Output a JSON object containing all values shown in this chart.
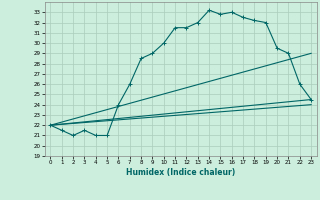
{
  "xlabel": "Humidex (Indice chaleur)",
  "background_color": "#cceedd",
  "grid_color": "#aaccbb",
  "line_color": "#006666",
  "xlim": [
    -0.5,
    23.5
  ],
  "ylim": [
    19,
    34
  ],
  "yticks": [
    19,
    20,
    21,
    22,
    23,
    24,
    25,
    26,
    27,
    28,
    29,
    30,
    31,
    32,
    33
  ],
  "xticks": [
    0,
    1,
    2,
    3,
    4,
    5,
    6,
    7,
    8,
    9,
    10,
    11,
    12,
    13,
    14,
    15,
    16,
    17,
    18,
    19,
    20,
    21,
    22,
    23
  ],
  "series": [
    {
      "x": [
        0,
        1,
        2,
        3,
        4,
        5,
        6,
        7,
        8,
        9,
        10,
        11,
        12,
        13,
        14,
        15,
        16,
        17,
        18,
        19,
        20,
        21,
        22,
        23
      ],
      "y": [
        22,
        21.5,
        21,
        21.5,
        21,
        21,
        24,
        26,
        28.5,
        29,
        30,
        31.5,
        31.5,
        32,
        33.2,
        32.8,
        33,
        32.5,
        32.2,
        32,
        29.5,
        29,
        26,
        24.5
      ],
      "marker": "+"
    },
    {
      "x": [
        0,
        23
      ],
      "y": [
        22,
        24
      ],
      "marker": null
    },
    {
      "x": [
        0,
        23
      ],
      "y": [
        22,
        29
      ],
      "marker": null
    },
    {
      "x": [
        0,
        23
      ],
      "y": [
        22,
        24.5
      ],
      "marker": null
    }
  ]
}
